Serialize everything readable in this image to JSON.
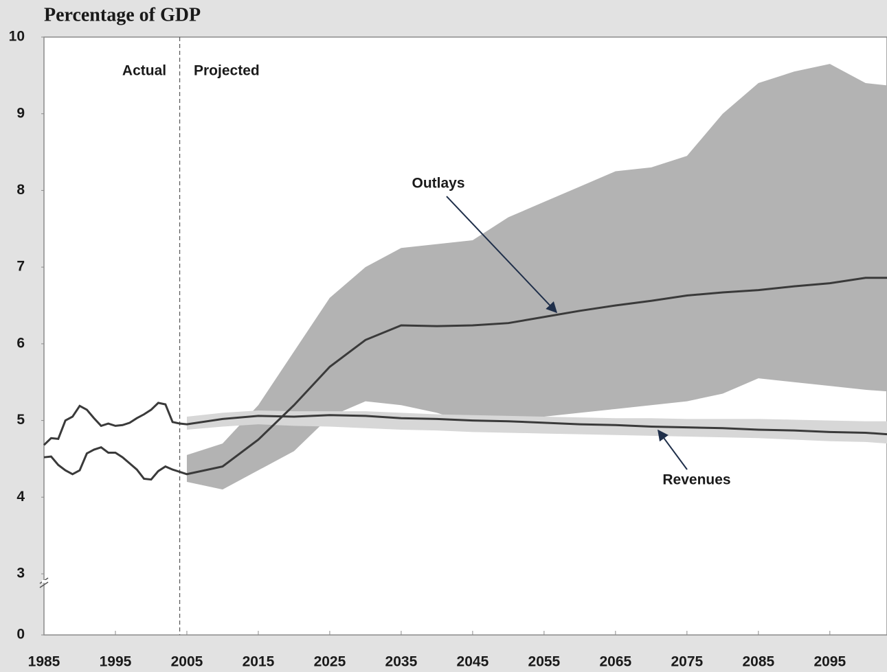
{
  "chart_data": {
    "type": "line",
    "y_axis_label": "Percentage of GDP",
    "x": [
      1985,
      1986,
      1987,
      1988,
      1989,
      1990,
      1991,
      1992,
      1993,
      1994,
      1995,
      1996,
      1997,
      1998,
      1999,
      2000,
      2001,
      2002,
      2003,
      2004,
      2005,
      2010,
      2015,
      2020,
      2025,
      2030,
      2035,
      2040,
      2045,
      2050,
      2055,
      2060,
      2065,
      2070,
      2075,
      2080,
      2085,
      2090,
      2095,
      2100,
      2103
    ],
    "series": [
      {
        "name": "Outlays",
        "color": "#3a3a3a",
        "values": [
          4.52,
          4.53,
          4.42,
          4.35,
          4.3,
          4.35,
          4.57,
          4.62,
          4.65,
          4.58,
          4.58,
          4.52,
          4.44,
          4.36,
          4.24,
          4.23,
          4.34,
          4.4,
          4.36,
          4.33,
          4.3,
          4.4,
          4.75,
          5.2,
          5.7,
          6.05,
          6.24,
          6.23,
          6.24,
          6.27,
          6.35,
          6.43,
          6.5,
          6.56,
          6.63,
          6.67,
          6.7,
          6.75,
          6.79,
          6.86,
          6.86
        ],
        "band_upper": [
          null,
          null,
          null,
          null,
          null,
          null,
          null,
          null,
          null,
          null,
          null,
          null,
          null,
          null,
          null,
          null,
          null,
          null,
          null,
          null,
          4.55,
          4.7,
          5.2,
          5.9,
          6.6,
          7.0,
          7.25,
          7.3,
          7.35,
          7.65,
          7.85,
          8.05,
          8.25,
          8.3,
          8.45,
          9.0,
          9.4,
          9.55,
          9.65,
          9.4,
          9.37
        ],
        "band_lower": [
          null,
          null,
          null,
          null,
          null,
          null,
          null,
          null,
          null,
          null,
          null,
          null,
          null,
          null,
          null,
          null,
          null,
          null,
          null,
          null,
          4.2,
          4.1,
          4.35,
          4.6,
          5.05,
          5.25,
          5.2,
          5.1,
          4.95,
          4.95,
          5.05,
          5.1,
          5.15,
          5.2,
          5.25,
          5.35,
          5.55,
          5.5,
          5.45,
          5.4,
          5.38
        ],
        "band_color": "#b3b3b3"
      },
      {
        "name": "Revenues",
        "color": "#3a3a3a",
        "values": [
          4.68,
          4.77,
          4.76,
          5.0,
          5.05,
          5.19,
          5.14,
          5.03,
          4.93,
          4.96,
          4.93,
          4.94,
          4.97,
          5.03,
          5.08,
          5.14,
          5.23,
          5.21,
          4.98,
          4.96,
          4.95,
          5.02,
          5.06,
          5.05,
          5.07,
          5.06,
          5.03,
          5.02,
          5.0,
          4.99,
          4.97,
          4.95,
          4.94,
          4.92,
          4.91,
          4.9,
          4.88,
          4.87,
          4.85,
          4.84,
          4.82
        ],
        "band_upper": [
          null,
          null,
          null,
          null,
          null,
          null,
          null,
          null,
          null,
          null,
          null,
          null,
          null,
          null,
          null,
          null,
          null,
          null,
          null,
          null,
          5.05,
          5.1,
          5.13,
          5.12,
          5.12,
          5.12,
          5.1,
          5.08,
          5.07,
          5.06,
          5.05,
          5.04,
          5.03,
          5.03,
          5.02,
          5.02,
          5.02,
          5.01,
          5.0,
          4.99,
          4.99
        ],
        "band_lower": [
          null,
          null,
          null,
          null,
          null,
          null,
          null,
          null,
          null,
          null,
          null,
          null,
          null,
          null,
          null,
          null,
          null,
          null,
          null,
          null,
          4.88,
          4.92,
          4.95,
          4.93,
          4.92,
          4.9,
          4.88,
          4.87,
          4.85,
          4.84,
          4.83,
          4.82,
          4.81,
          4.8,
          4.79,
          4.78,
          4.77,
          4.75,
          4.73,
          4.72,
          4.7
        ],
        "band_color": "#d7d7d7"
      }
    ],
    "xlim": [
      1985,
      2103
    ],
    "xticks": [
      1985,
      1995,
      2005,
      2015,
      2025,
      2035,
      2045,
      2055,
      2065,
      2075,
      2085,
      2095
    ],
    "ylim": [
      0,
      10
    ],
    "yticks": [
      0,
      3,
      4,
      5,
      6,
      7,
      8,
      9,
      10
    ],
    "y_axis_break": 3,
    "projection_start": 2004,
    "annotations": [
      "Actual",
      "Projected",
      "Outlays",
      "Revenues"
    ]
  }
}
